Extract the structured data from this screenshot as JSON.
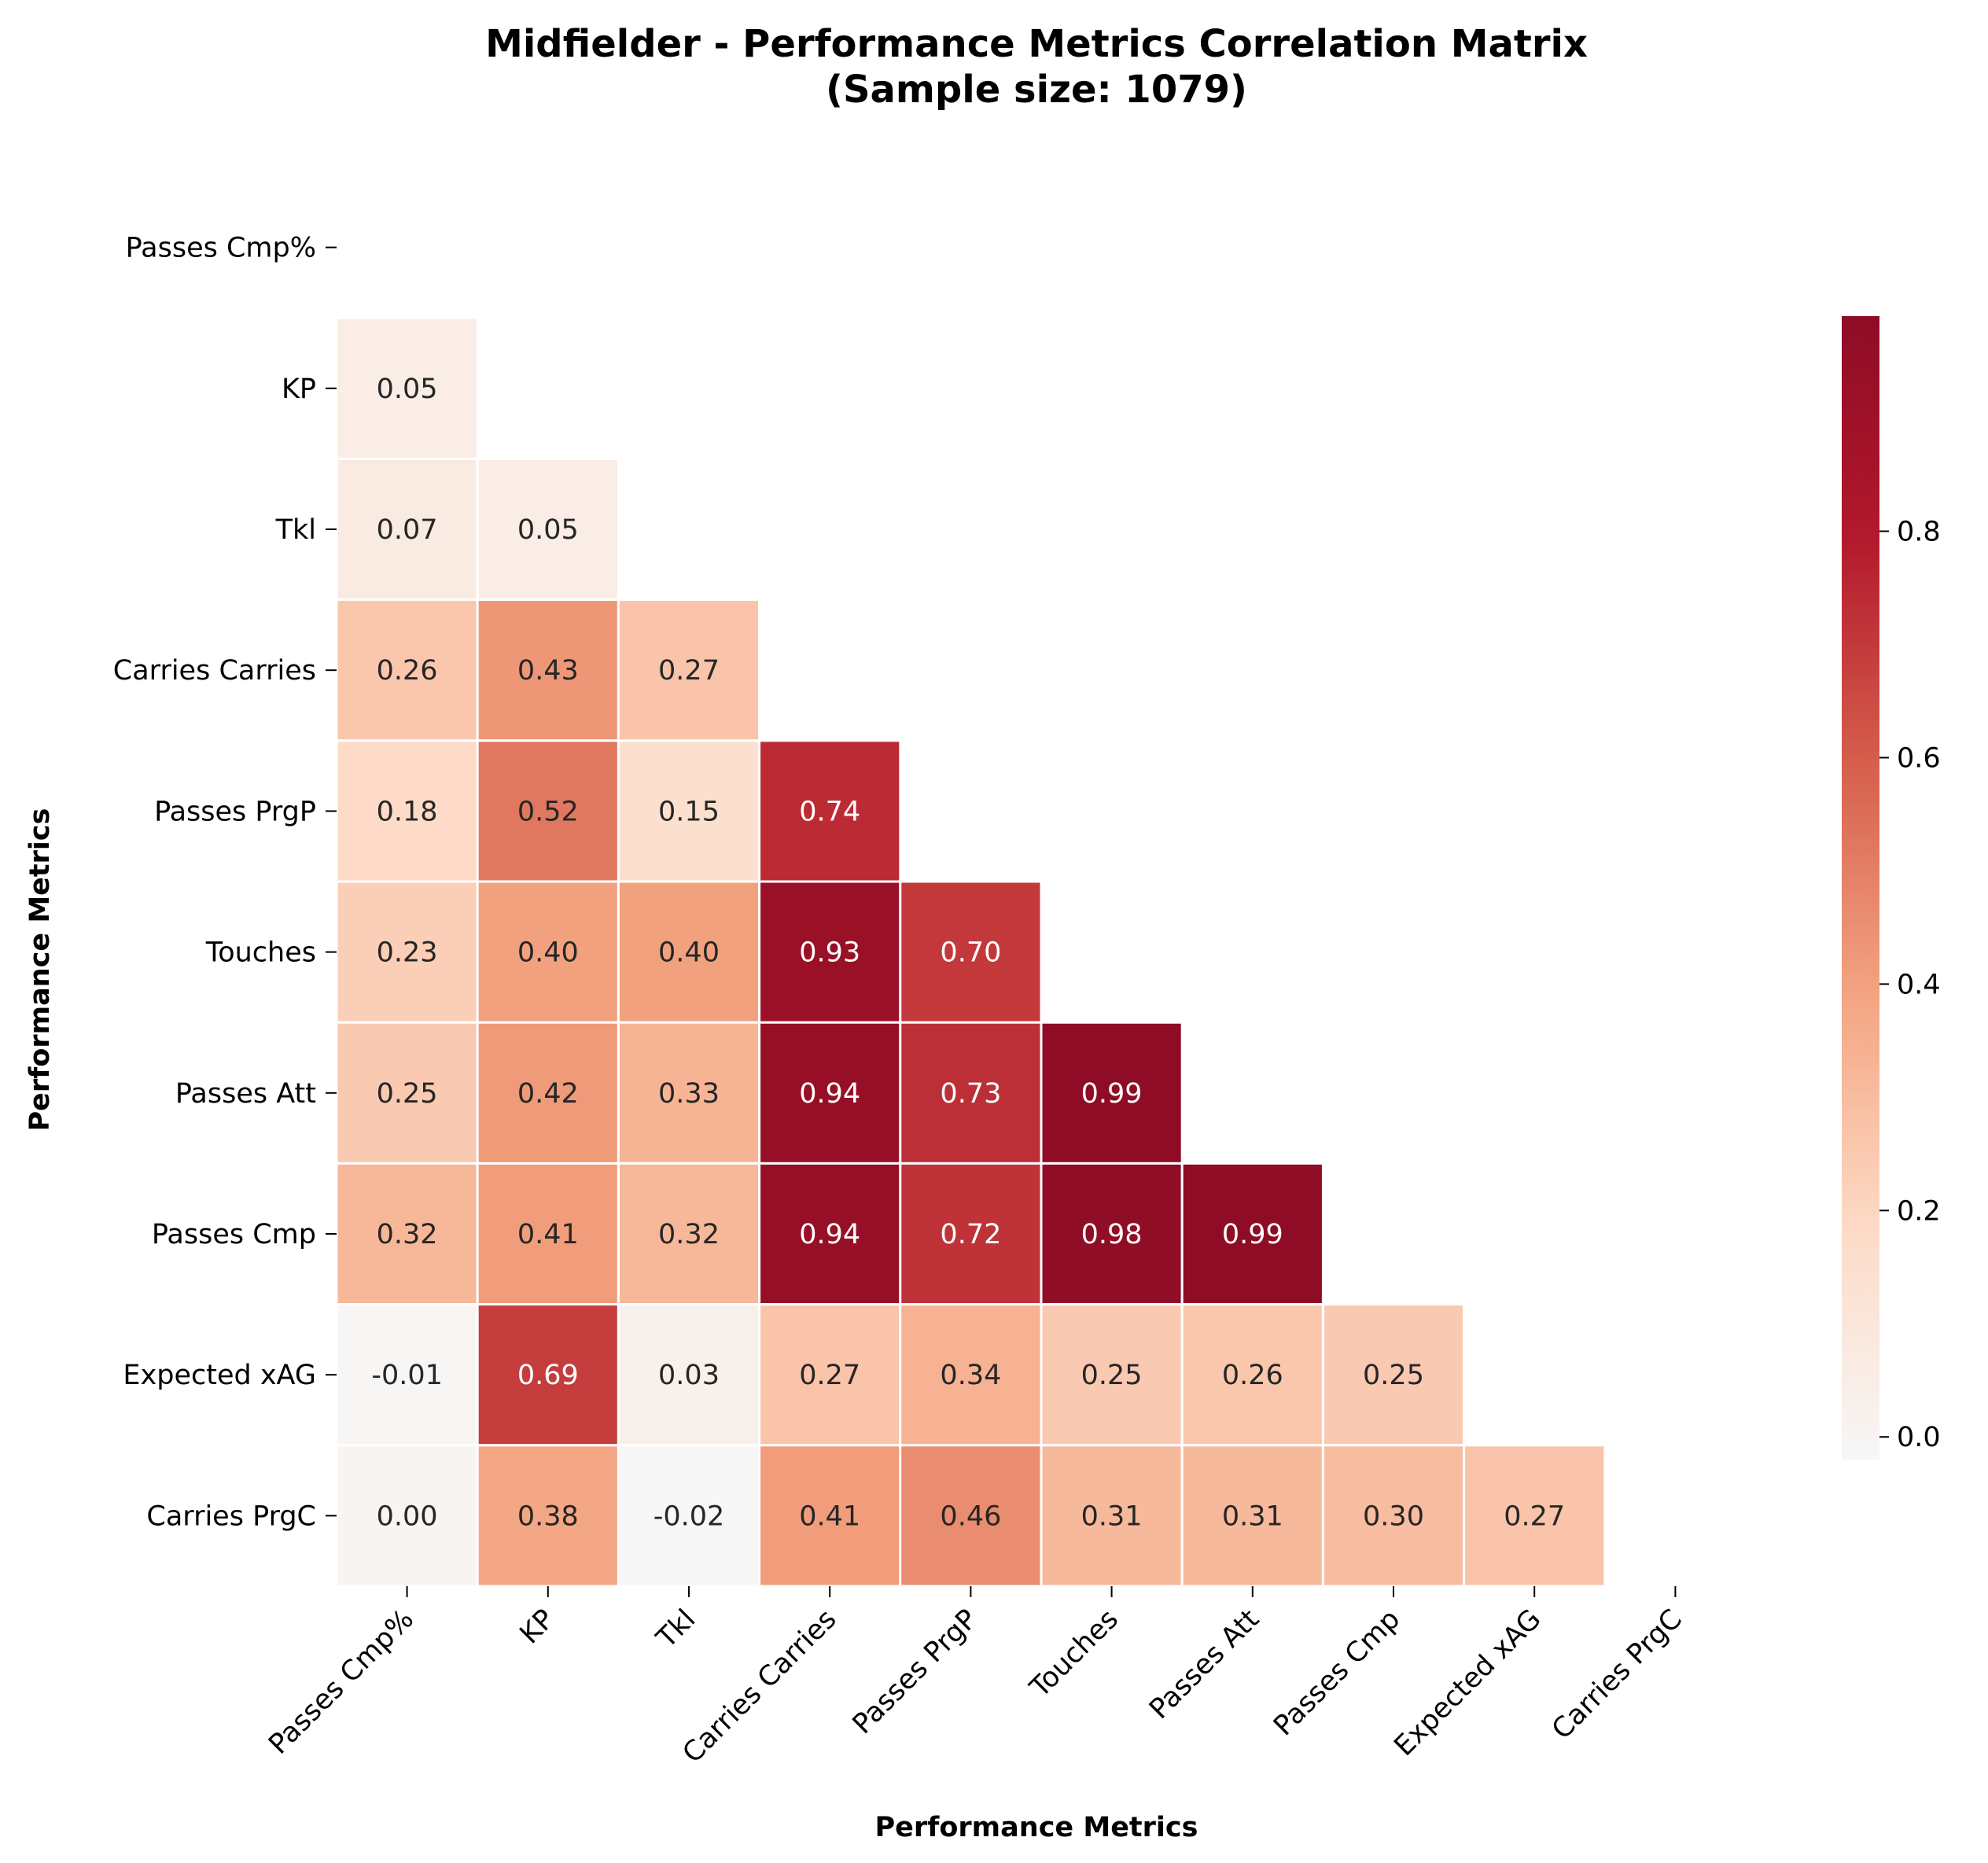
{
  "chart_data": {
    "type": "heatmap",
    "title": "Midfielder - Performance Metrics Correlation Matrix",
    "subtitle": "(Sample size: 1079)",
    "xlabel": "Performance Metrics",
    "ylabel": "Performance Metrics",
    "variables": [
      "Passes Cmp%",
      "KP",
      "Tkl",
      "Carries Carries",
      "Passes PrgP",
      "Touches",
      "Passes Att",
      "Passes Cmp",
      "Expected xAG",
      "Carries PrgC"
    ],
    "mask": "upper triangle including diagonal",
    "values": [
      [
        null,
        null,
        null,
        null,
        null,
        null,
        null,
        null,
        null,
        null
      ],
      [
        0.05,
        null,
        null,
        null,
        null,
        null,
        null,
        null,
        null,
        null
      ],
      [
        0.07,
        0.05,
        null,
        null,
        null,
        null,
        null,
        null,
        null,
        null
      ],
      [
        0.26,
        0.43,
        0.27,
        null,
        null,
        null,
        null,
        null,
        null,
        null
      ],
      [
        0.18,
        0.52,
        0.15,
        0.74,
        null,
        null,
        null,
        null,
        null,
        null
      ],
      [
        0.23,
        0.4,
        0.4,
        0.93,
        0.7,
        null,
        null,
        null,
        null,
        null
      ],
      [
        0.25,
        0.42,
        0.33,
        0.94,
        0.73,
        0.99,
        null,
        null,
        null,
        null
      ],
      [
        0.32,
        0.41,
        0.32,
        0.94,
        0.72,
        0.98,
        0.99,
        null,
        null,
        null
      ],
      [
        -0.01,
        0.69,
        0.03,
        0.27,
        0.34,
        0.25,
        0.26,
        0.25,
        null,
        null
      ],
      [
        0.0,
        0.38,
        -0.02,
        0.41,
        0.46,
        0.31,
        0.31,
        0.3,
        0.27,
        null
      ]
    ],
    "value_format": "0.00",
    "colormap": "RdBu_r (positive half)",
    "vmin": -0.02,
    "vmax": 0.99,
    "colorbar_ticks": [
      0.0,
      0.2,
      0.4,
      0.6,
      0.8
    ],
    "colorbar_tick_labels": [
      "0.0",
      "0.2",
      "0.4",
      "0.6",
      "0.8"
    ],
    "cell_border_color": "#ffffff",
    "colors": {
      "text_dark": "#262626",
      "text_light": "#ffffff"
    }
  }
}
